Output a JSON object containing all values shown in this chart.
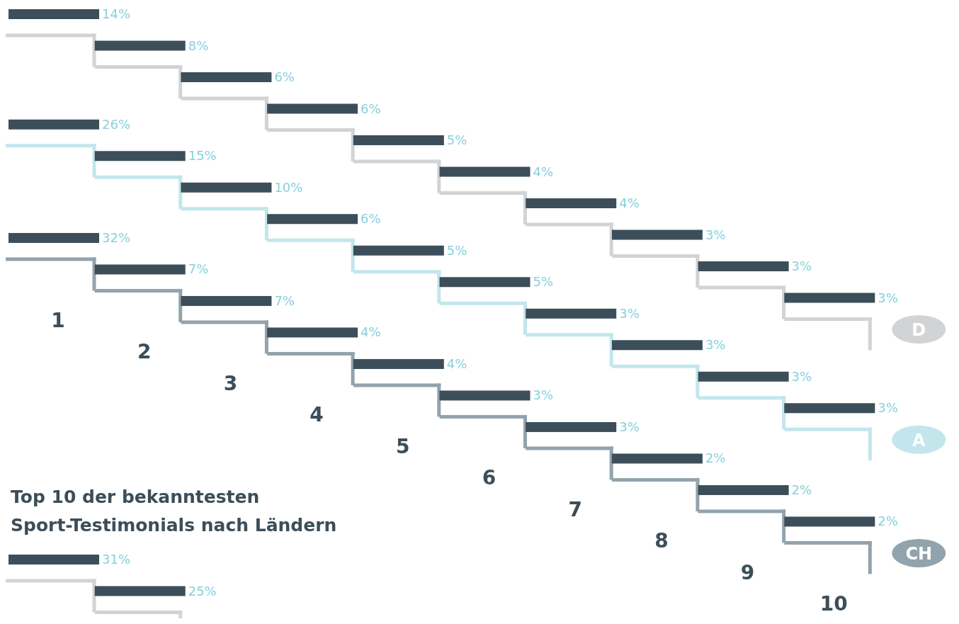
{
  "chart_data": [
    {
      "type": "other",
      "title": "Top 10 der bekanntesten Sport-Testimonials nach Ländern",
      "categories": [
        "1",
        "2",
        "3",
        "4",
        "5",
        "6",
        "7",
        "8",
        "9",
        "10"
      ],
      "series": [
        {
          "name": "D",
          "color": "#d2d3d4",
          "values": [
            14,
            8,
            6,
            6,
            5,
            4,
            4,
            3,
            3,
            3
          ],
          "value_labels": [
            "14%",
            "8%",
            "6%",
            "6%",
            "5%",
            "4%",
            "4%",
            "3%",
            "3%",
            "3%"
          ]
        },
        {
          "name": "A",
          "color": "#c2e6ec",
          "values": [
            26,
            15,
            10,
            6,
            5,
            5,
            3,
            3,
            3,
            3
          ],
          "value_labels": [
            "26%",
            "15%",
            "10%",
            "6%",
            "5%",
            "5%",
            "3%",
            "3%",
            "3%",
            "3%"
          ]
        },
        {
          "name": "CH",
          "color": "#93a3ad",
          "values": [
            32,
            7,
            7,
            4,
            4,
            3,
            3,
            2,
            2,
            2
          ],
          "value_labels": [
            "32%",
            "7%",
            "7%",
            "4%",
            "4%",
            "3%",
            "3%",
            "2%",
            "2%",
            "2%"
          ]
        }
      ]
    },
    {
      "type": "other",
      "categories": [
        null,
        null
      ],
      "series": [
        {
          "color": "#d2d3d4",
          "values": [
            31,
            25
          ],
          "value_labels": [
            "31%",
            "25%"
          ]
        }
      ]
    }
  ]
}
